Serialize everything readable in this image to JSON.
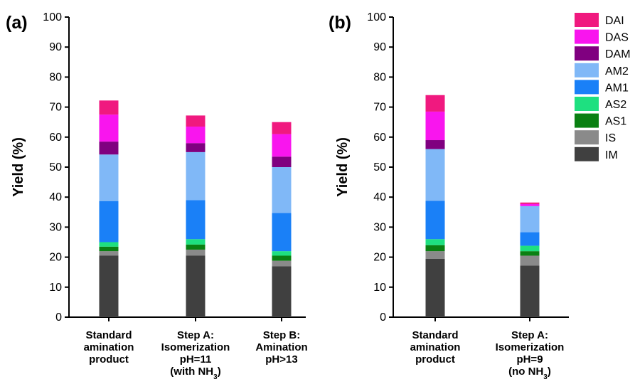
{
  "chart_data": [
    {
      "type": "bar",
      "panel_label": "(a)",
      "ylabel": "Yield (%)",
      "ylim": [
        0,
        100
      ],
      "yticks": [
        0,
        10,
        20,
        30,
        40,
        50,
        60,
        70,
        80,
        90,
        100
      ],
      "stacked": true,
      "categories": [
        {
          "lines": [
            "Standard",
            "amination",
            "product"
          ]
        },
        {
          "lines": [
            "Step A:",
            "Isomerization",
            "pH=11",
            "(with NH3)"
          ]
        },
        {
          "lines": [
            "Step B:",
            "Amination",
            "pH>13"
          ]
        }
      ],
      "series": [
        {
          "name": "IM",
          "values": [
            20.5,
            20.5,
            17.0
          ]
        },
        {
          "name": "IS",
          "values": [
            1.5,
            2.0,
            1.8
          ]
        },
        {
          "name": "AS1",
          "values": [
            1.5,
            1.7,
            1.7
          ]
        },
        {
          "name": "AS2",
          "values": [
            1.5,
            1.8,
            1.5
          ]
        },
        {
          "name": "AM1",
          "values": [
            13.7,
            13.0,
            12.7
          ]
        },
        {
          "name": "AM2",
          "values": [
            15.5,
            16.0,
            15.3
          ]
        },
        {
          "name": "DAM",
          "values": [
            4.3,
            3.0,
            3.5
          ]
        },
        {
          "name": "DAS",
          "values": [
            9.0,
            5.5,
            7.5
          ]
        },
        {
          "name": "DAI",
          "values": [
            4.7,
            3.7,
            4.0
          ]
        }
      ]
    },
    {
      "type": "bar",
      "panel_label": "(b)",
      "ylabel": "Yield (%)",
      "ylim": [
        0,
        100
      ],
      "yticks": [
        0,
        10,
        20,
        30,
        40,
        50,
        60,
        70,
        80,
        90,
        100
      ],
      "stacked": true,
      "legend_position": "top-right",
      "categories": [
        {
          "lines": [
            "Standard",
            "amination",
            "product"
          ]
        },
        {
          "lines": [
            "Step A:",
            "Isomerization",
            "pH=9",
            "(no NH3)"
          ]
        }
      ],
      "series": [
        {
          "name": "IM",
          "values": [
            19.5,
            17.2
          ]
        },
        {
          "name": "IS",
          "values": [
            2.5,
            3.3
          ]
        },
        {
          "name": "AS1",
          "values": [
            2.0,
            1.5
          ]
        },
        {
          "name": "AS2",
          "values": [
            2.0,
            1.8
          ]
        },
        {
          "name": "AM1",
          "values": [
            12.8,
            4.5
          ]
        },
        {
          "name": "AM2",
          "values": [
            17.2,
            8.7
          ]
        },
        {
          "name": "DAM",
          "values": [
            3.0,
            0.0
          ]
        },
        {
          "name": "DAS",
          "values": [
            9.5,
            0.7
          ]
        },
        {
          "name": "DAI",
          "values": [
            5.5,
            0.5
          ]
        }
      ]
    }
  ],
  "legend": {
    "items": [
      {
        "name": "DAI",
        "color": "#f0197f"
      },
      {
        "name": "DAS",
        "color": "#f915ee"
      },
      {
        "name": "DAM",
        "color": "#800080"
      },
      {
        "name": "AM2",
        "color": "#80b8f7"
      },
      {
        "name": "AM1",
        "color": "#1a80f7"
      },
      {
        "name": "AS2",
        "color": "#1ee080"
      },
      {
        "name": "AS1",
        "color": "#0a8012"
      },
      {
        "name": "IS",
        "color": "#8a8a8a"
      },
      {
        "name": "IM",
        "color": "#404040"
      }
    ]
  }
}
